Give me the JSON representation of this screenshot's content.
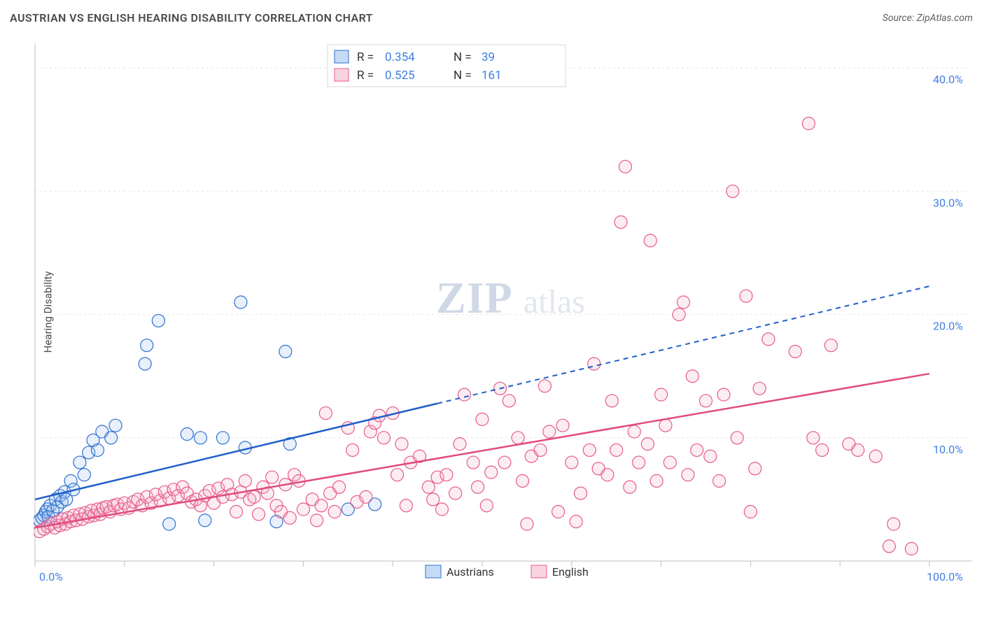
{
  "title": "AUSTRIAN VS ENGLISH HEARING DISABILITY CORRELATION CHART",
  "source": "Source: ZipAtlas.com",
  "ylabel": "Hearing Disability",
  "watermark": {
    "zip": "ZIP",
    "atlas": "atlas"
  },
  "chart": {
    "type": "scatter",
    "background_color": "#ffffff",
    "grid_color": "#e5e5e5",
    "axis_color": "#bfbfbf",
    "tick_label_color": "#3f7fe0",
    "xlim": [
      0,
      100
    ],
    "ylim": [
      0,
      42
    ],
    "y_ticks": [
      10,
      20,
      30,
      40
    ],
    "y_tick_labels": [
      "10.0%",
      "20.0%",
      "30.0%",
      "40.0%"
    ],
    "x_axis_labels": {
      "left": "0.0%",
      "right": "100.0%"
    },
    "x_minor_ticks": [
      0,
      10,
      20,
      30,
      40,
      50,
      60,
      70,
      80,
      90,
      100
    ],
    "marker_radius": 9,
    "marker_stroke_width": 1.2,
    "marker_fill_opacity": 0.25,
    "series": [
      {
        "id": "austrians",
        "label": "Austrians",
        "stroke": "#2f6fd0",
        "fill": "#9ec3ee",
        "line_color": "#1f5fc8",
        "R": "0.354",
        "N": "39",
        "regression": {
          "x1": 0,
          "y1": 5.0,
          "x2": 100,
          "y2": 22.3,
          "solid_until_x": 45
        },
        "points": [
          [
            0.5,
            3.3
          ],
          [
            0.8,
            3.5
          ],
          [
            1.0,
            3.7
          ],
          [
            1.2,
            4.0
          ],
          [
            1.4,
            4.2
          ],
          [
            1.5,
            3.6
          ],
          [
            1.7,
            4.5
          ],
          [
            2.0,
            4.1
          ],
          [
            2.3,
            5.0
          ],
          [
            2.5,
            4.4
          ],
          [
            2.8,
            5.3
          ],
          [
            3.0,
            4.8
          ],
          [
            3.3,
            5.6
          ],
          [
            3.5,
            5.0
          ],
          [
            4.0,
            6.5
          ],
          [
            4.3,
            5.8
          ],
          [
            5.0,
            8.0
          ],
          [
            5.5,
            7.0
          ],
          [
            6.0,
            8.8
          ],
          [
            6.5,
            9.8
          ],
          [
            7.0,
            9.0
          ],
          [
            7.5,
            10.5
          ],
          [
            8.5,
            10.0
          ],
          [
            9.0,
            11.0
          ],
          [
            12.3,
            16.0
          ],
          [
            12.5,
            17.5
          ],
          [
            13.8,
            19.5
          ],
          [
            15.0,
            3.0
          ],
          [
            17.0,
            10.3
          ],
          [
            18.5,
            10.0
          ],
          [
            19.0,
            3.3
          ],
          [
            21.0,
            10.0
          ],
          [
            23.0,
            21.0
          ],
          [
            23.5,
            9.2
          ],
          [
            27.0,
            3.2
          ],
          [
            28.0,
            17.0
          ],
          [
            28.5,
            9.5
          ],
          [
            35.0,
            4.2
          ],
          [
            38.0,
            4.6
          ]
        ]
      },
      {
        "id": "english",
        "label": "English",
        "stroke": "#e75a8a",
        "fill": "#f4b7cb",
        "line_color": "#e04a7d",
        "R": "0.525",
        "N": "161",
        "regression": {
          "x1": 0,
          "y1": 2.7,
          "x2": 100,
          "y2": 15.2,
          "solid_until_x": 100
        },
        "points": [
          [
            0.5,
            2.4
          ],
          [
            1.0,
            2.6
          ],
          [
            1.4,
            2.8
          ],
          [
            1.8,
            3.0
          ],
          [
            2.2,
            2.7
          ],
          [
            2.5,
            3.2
          ],
          [
            2.8,
            2.9
          ],
          [
            3.1,
            3.4
          ],
          [
            3.4,
            3.0
          ],
          [
            3.7,
            3.5
          ],
          [
            4.0,
            3.2
          ],
          [
            4.3,
            3.7
          ],
          [
            4.6,
            3.3
          ],
          [
            5.0,
            3.8
          ],
          [
            5.3,
            3.4
          ],
          [
            5.6,
            3.9
          ],
          [
            6.0,
            3.6
          ],
          [
            6.3,
            4.1
          ],
          [
            6.6,
            3.7
          ],
          [
            7.0,
            4.2
          ],
          [
            7.3,
            3.8
          ],
          [
            7.6,
            4.3
          ],
          [
            8.0,
            4.4
          ],
          [
            8.4,
            4.0
          ],
          [
            8.8,
            4.5
          ],
          [
            9.2,
            4.6
          ],
          [
            9.6,
            4.2
          ],
          [
            10.0,
            4.7
          ],
          [
            10.5,
            4.3
          ],
          [
            11.0,
            4.8
          ],
          [
            11.5,
            5.0
          ],
          [
            12.0,
            4.5
          ],
          [
            12.5,
            5.2
          ],
          [
            13.0,
            4.7
          ],
          [
            13.5,
            5.4
          ],
          [
            14.0,
            4.9
          ],
          [
            14.5,
            5.6
          ],
          [
            15.0,
            5.1
          ],
          [
            15.5,
            5.8
          ],
          [
            16.0,
            5.3
          ],
          [
            16.5,
            6.0
          ],
          [
            17.0,
            5.5
          ],
          [
            17.5,
            4.8
          ],
          [
            18.0,
            5.0
          ],
          [
            18.5,
            4.5
          ],
          [
            19.0,
            5.3
          ],
          [
            19.5,
            5.7
          ],
          [
            20.0,
            4.7
          ],
          [
            20.5,
            5.9
          ],
          [
            21.0,
            5.2
          ],
          [
            21.5,
            6.2
          ],
          [
            22.0,
            5.4
          ],
          [
            22.5,
            4.0
          ],
          [
            23.0,
            5.6
          ],
          [
            23.5,
            6.5
          ],
          [
            24.0,
            5.0
          ],
          [
            24.5,
            5.2
          ],
          [
            25.0,
            3.8
          ],
          [
            25.5,
            6.0
          ],
          [
            26.0,
            5.5
          ],
          [
            26.5,
            6.8
          ],
          [
            27.0,
            4.5
          ],
          [
            27.5,
            4.0
          ],
          [
            28.0,
            6.2
          ],
          [
            28.5,
            3.5
          ],
          [
            29.0,
            7.0
          ],
          [
            29.5,
            6.5
          ],
          [
            30.0,
            4.2
          ],
          [
            31.0,
            5.0
          ],
          [
            31.5,
            3.3
          ],
          [
            32.0,
            4.5
          ],
          [
            32.5,
            12.0
          ],
          [
            33.0,
            5.5
          ],
          [
            33.5,
            4.0
          ],
          [
            34.0,
            6.0
          ],
          [
            35.0,
            10.8
          ],
          [
            35.5,
            9.0
          ],
          [
            36.0,
            4.8
          ],
          [
            37.0,
            5.2
          ],
          [
            37.5,
            10.5
          ],
          [
            38.0,
            11.2
          ],
          [
            38.5,
            11.8
          ],
          [
            39.0,
            10.0
          ],
          [
            40.0,
            12.0
          ],
          [
            40.5,
            7.0
          ],
          [
            41.0,
            9.5
          ],
          [
            41.5,
            4.5
          ],
          [
            42.0,
            8.0
          ],
          [
            43.0,
            8.5
          ],
          [
            44.0,
            6.0
          ],
          [
            44.5,
            5.0
          ],
          [
            45.0,
            6.8
          ],
          [
            45.5,
            4.2
          ],
          [
            46.0,
            7.0
          ],
          [
            47.0,
            5.5
          ],
          [
            47.5,
            9.5
          ],
          [
            48.0,
            13.5
          ],
          [
            49.0,
            8.0
          ],
          [
            49.5,
            6.0
          ],
          [
            50.0,
            11.5
          ],
          [
            50.5,
            4.5
          ],
          [
            51.0,
            7.2
          ],
          [
            52.0,
            14.0
          ],
          [
            52.5,
            8.0
          ],
          [
            53.0,
            13.0
          ],
          [
            54.0,
            10.0
          ],
          [
            54.5,
            6.5
          ],
          [
            55.0,
            3.0
          ],
          [
            55.5,
            8.5
          ],
          [
            56.5,
            9.0
          ],
          [
            57.0,
            14.2
          ],
          [
            57.5,
            10.5
          ],
          [
            58.5,
            4.0
          ],
          [
            59.0,
            11.0
          ],
          [
            60.0,
            8.0
          ],
          [
            60.5,
            3.2
          ],
          [
            61.0,
            5.5
          ],
          [
            62.0,
            9.0
          ],
          [
            62.5,
            16.0
          ],
          [
            63.0,
            7.5
          ],
          [
            64.0,
            7.0
          ],
          [
            64.5,
            13.0
          ],
          [
            65.0,
            9.0
          ],
          [
            65.5,
            27.5
          ],
          [
            66.0,
            32.0
          ],
          [
            66.5,
            6.0
          ],
          [
            67.0,
            10.5
          ],
          [
            67.5,
            8.0
          ],
          [
            68.5,
            9.5
          ],
          [
            68.8,
            26.0
          ],
          [
            69.5,
            6.5
          ],
          [
            70.0,
            13.5
          ],
          [
            70.5,
            11.0
          ],
          [
            71.0,
            8.0
          ],
          [
            72.0,
            20.0
          ],
          [
            72.5,
            21.0
          ],
          [
            73.0,
            7.0
          ],
          [
            73.5,
            15.0
          ],
          [
            74.0,
            9.0
          ],
          [
            75.0,
            13.0
          ],
          [
            75.5,
            8.5
          ],
          [
            76.5,
            6.5
          ],
          [
            77.0,
            13.5
          ],
          [
            78.0,
            30.0
          ],
          [
            78.5,
            10.0
          ],
          [
            79.5,
            21.5
          ],
          [
            80.0,
            4.0
          ],
          [
            80.5,
            7.5
          ],
          [
            81.0,
            14.0
          ],
          [
            82.0,
            18.0
          ],
          [
            85.0,
            17.0
          ],
          [
            86.5,
            35.5
          ],
          [
            87.0,
            10.0
          ],
          [
            88.0,
            9.0
          ],
          [
            89.0,
            17.5
          ],
          [
            91.0,
            9.5
          ],
          [
            92.0,
            9.0
          ],
          [
            94.0,
            8.5
          ],
          [
            95.5,
            1.2
          ],
          [
            96.0,
            3.0
          ],
          [
            98.0,
            1.0
          ]
        ]
      }
    ],
    "top_legend": {
      "bg": "#ffffff",
      "border": "#d7d7d7",
      "R_label": "R =",
      "N_label": "N ="
    },
    "bottom_legend": {
      "items": [
        {
          "label": "Austrians",
          "fill": "#9ec3ee",
          "stroke": "#2f6fd0"
        },
        {
          "label": "English",
          "fill": "#f4b7cb",
          "stroke": "#e75a8a"
        }
      ]
    }
  }
}
